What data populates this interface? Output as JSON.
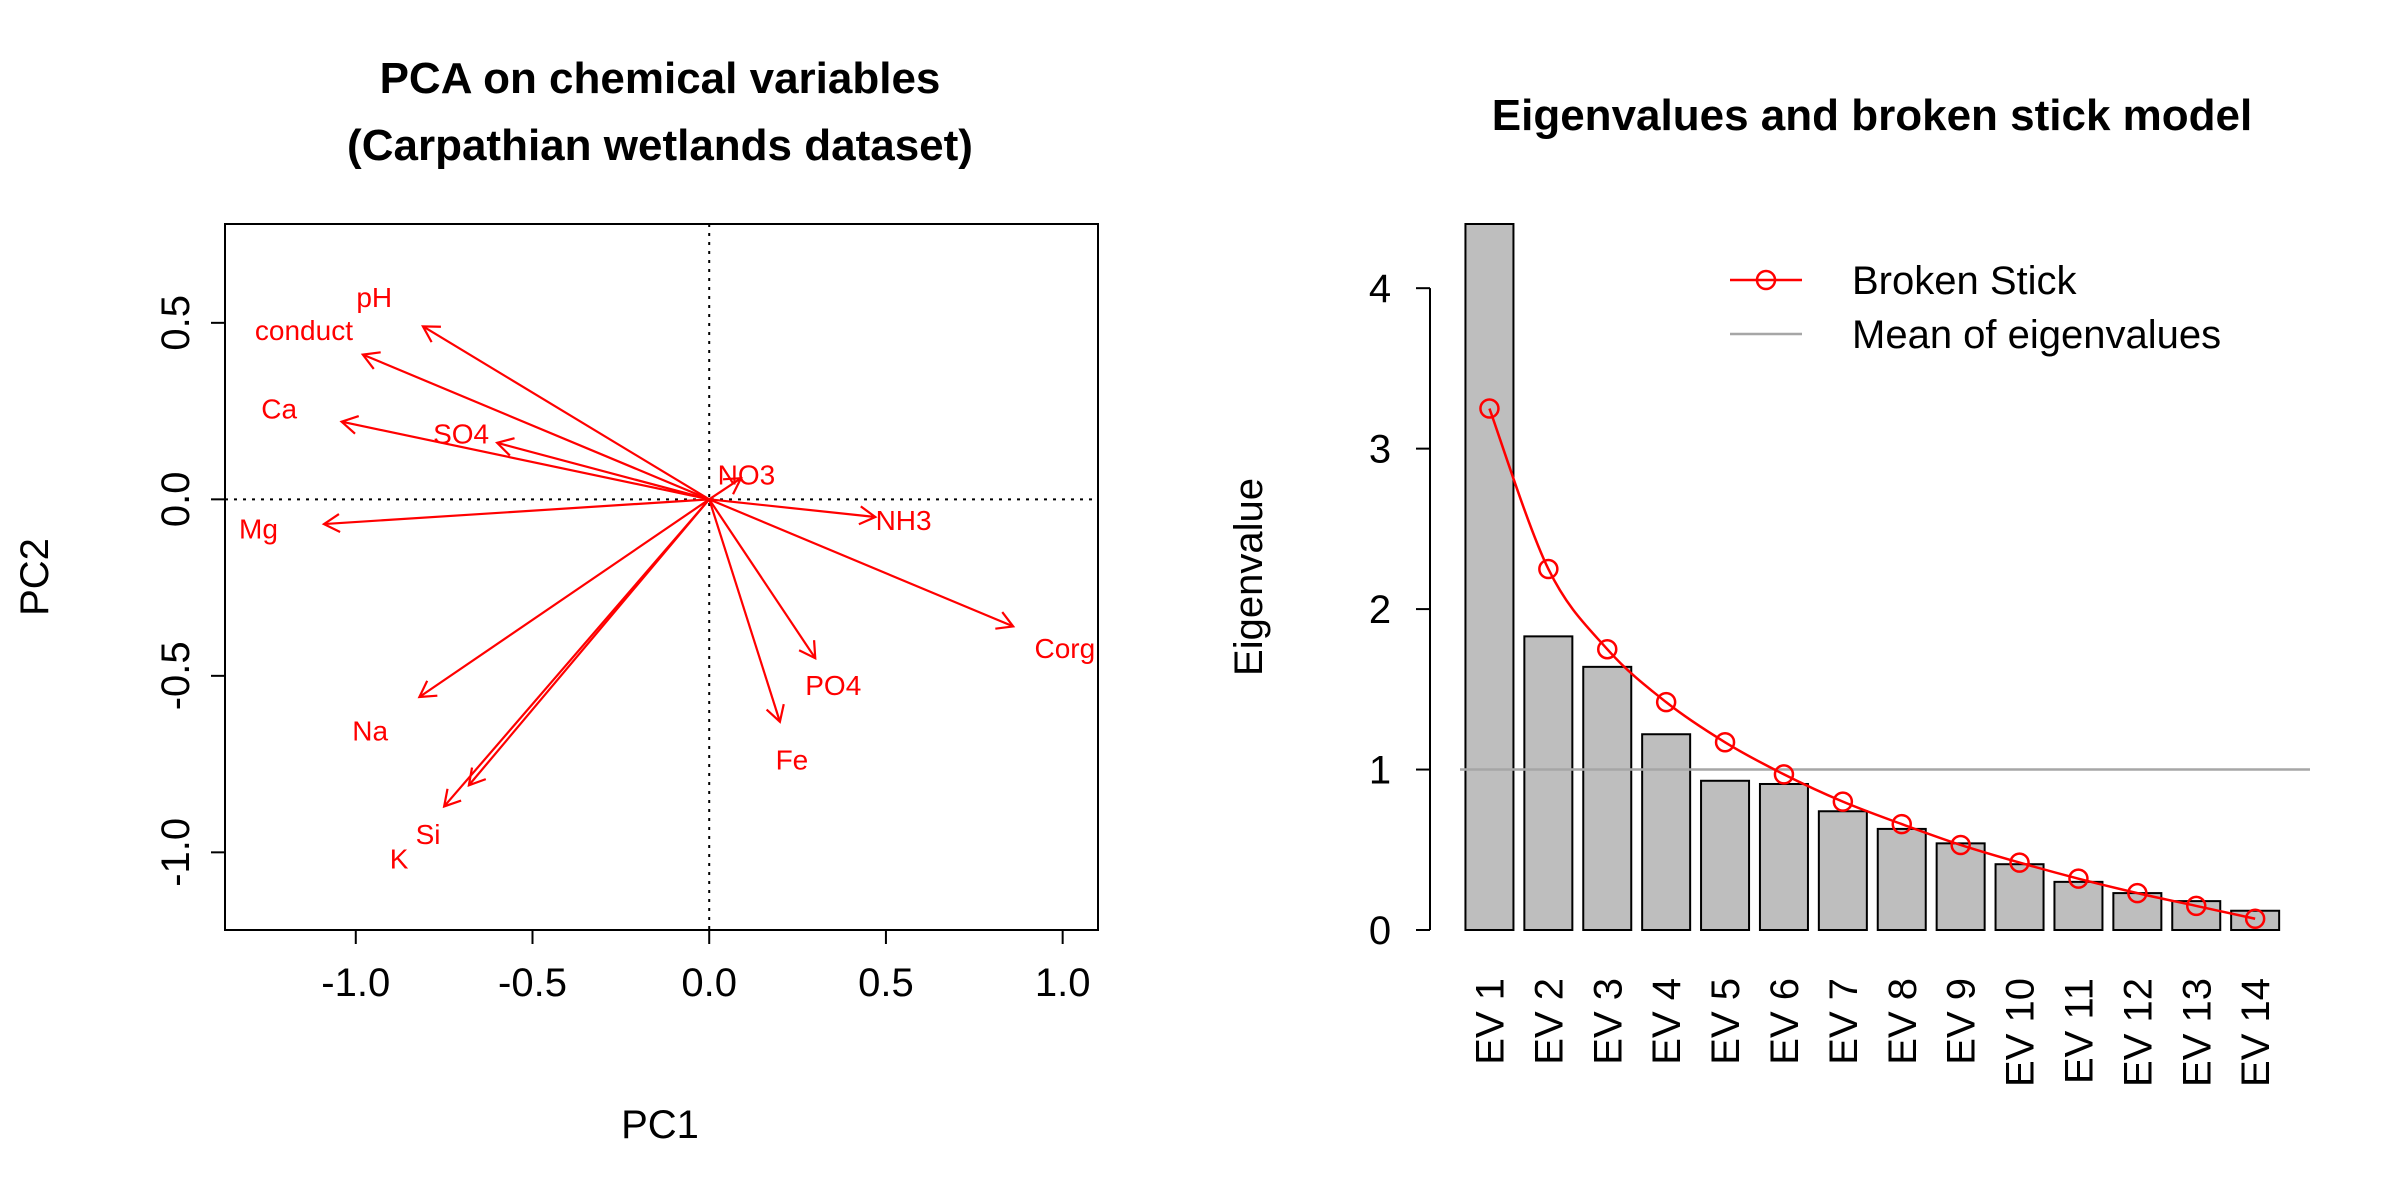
{
  "chart_data": [
    {
      "type": "biplot",
      "title_line1": "PCA on chemical variables",
      "title_line2": "(Carpathian wetlands dataset)",
      "xlabel": "PC1",
      "ylabel": "PC2",
      "xlim": [
        -1.37,
        1.1
      ],
      "ylim": [
        -1.22,
        0.78
      ],
      "xticks": [
        "-1.0",
        "-0.5",
        "0.0",
        "0.5",
        "1.0"
      ],
      "yticks": [
        "0.5",
        "0.0",
        "-0.5",
        "-1.0"
      ],
      "reference_lines": "dotted lines at x = 0 and y = 0",
      "arrow_color": "#ff0000",
      "arrows": [
        {
          "label": "pH",
          "x": -0.81,
          "y": 0.49
        },
        {
          "label": "conduct",
          "x": -0.98,
          "y": 0.41
        },
        {
          "label": "Ca",
          "x": -1.04,
          "y": 0.22
        },
        {
          "label": "SO4",
          "x": -0.6,
          "y": 0.16
        },
        {
          "label": "NO3",
          "x": 0.09,
          "y": 0.06
        },
        {
          "label": "NH3",
          "x": 0.47,
          "y": -0.05
        },
        {
          "label": "Mg",
          "x": -1.09,
          "y": -0.07
        },
        {
          "label": "Corg",
          "x": 0.86,
          "y": -0.36
        },
        {
          "label": "PO4",
          "x": 0.3,
          "y": -0.45
        },
        {
          "label": "Na",
          "x": -0.82,
          "y": -0.56
        },
        {
          "label": "Fe",
          "x": 0.2,
          "y": -0.63
        },
        {
          "label": "Si",
          "x": -0.68,
          "y": -0.81
        },
        {
          "label": "K",
          "x": -0.75,
          "y": -0.87
        }
      ]
    },
    {
      "type": "bar",
      "title": "Eigenvalues and broken stick model",
      "ylabel": "Eigenvalue",
      "ylim": [
        0,
        4.4
      ],
      "yticks": [
        "0",
        "1",
        "2",
        "3",
        "4"
      ],
      "categories": [
        "EV 1",
        "EV 2",
        "EV 3",
        "EV 4",
        "EV 5",
        "EV 6",
        "EV 7",
        "EV 8",
        "EV 9",
        "EV 10",
        "EV 11",
        "EV 12",
        "EV 13",
        "EV 14"
      ],
      "series": [
        {
          "kind": "bars",
          "values": [
            4.4,
            1.83,
            1.64,
            1.22,
            0.93,
            0.91,
            0.74,
            0.63,
            0.54,
            0.41,
            0.3,
            0.23,
            0.18,
            0.12
          ],
          "color": "#bebebe"
        },
        {
          "kind": "line",
          "name": "Broken Stick",
          "values": [
            3.25,
            2.25,
            1.75,
            1.42,
            1.17,
            0.97,
            0.8,
            0.66,
            0.53,
            0.42,
            0.32,
            0.23,
            0.15,
            0.07
          ],
          "color": "#ff0000"
        },
        {
          "kind": "hline",
          "name": "Mean of eigenvalues",
          "value": 1,
          "color": "#a6a6a6"
        }
      ],
      "legend_position": "top-right"
    }
  ]
}
